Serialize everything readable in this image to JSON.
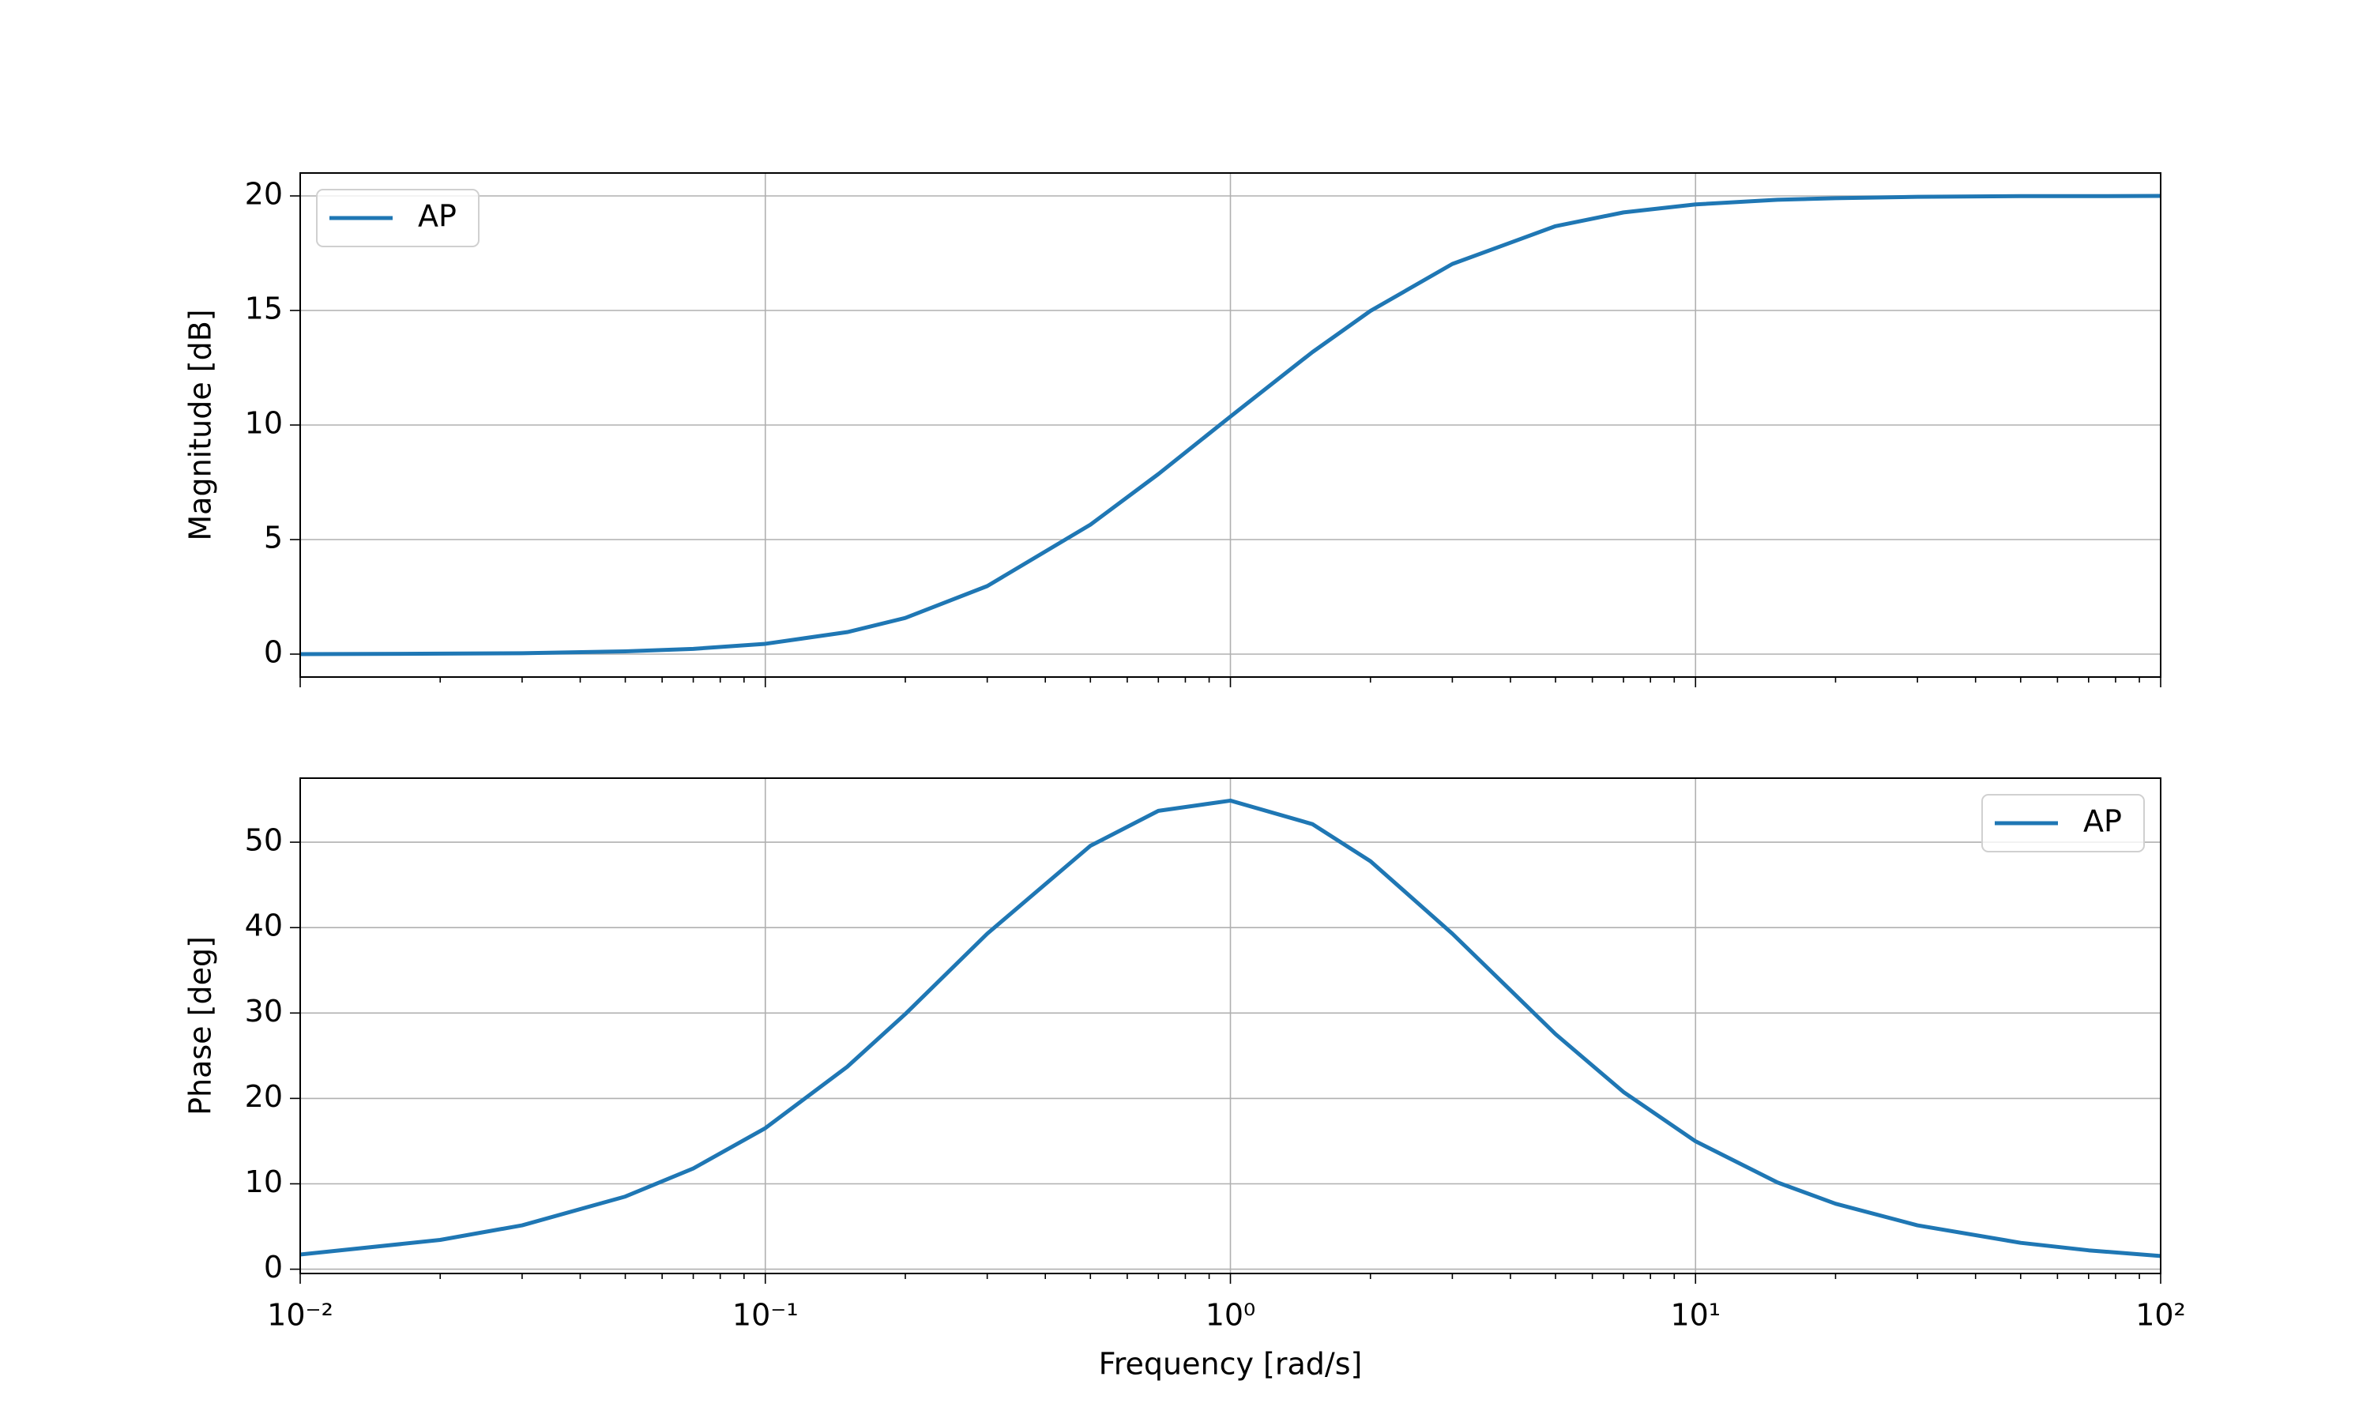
{
  "chart_data": [
    {
      "type": "line",
      "ylabel": "Magnitude [dB]",
      "xscale": "log",
      "grid": true,
      "legend": "upper left",
      "show_xtick_labels": false,
      "x": [
        0.01,
        0.02,
        0.03,
        0.05,
        0.07,
        0.1,
        0.15,
        0.2,
        0.3,
        0.5,
        0.7,
        1,
        1.5,
        2,
        3,
        5,
        7,
        10,
        15,
        20,
        30,
        50,
        70,
        100
      ],
      "series": [
        {
          "name": "AP",
          "color": "#1f77b4",
          "values": [
            0.0,
            0.02,
            0.04,
            0.12,
            0.23,
            0.45,
            0.96,
            1.58,
            2.97,
            5.65,
            7.86,
            10.37,
            13.18,
            14.98,
            17.03,
            18.68,
            19.28,
            19.63,
            19.83,
            19.9,
            19.96,
            19.99,
            19.99,
            20.0
          ]
        }
      ],
      "xlim": [
        0.01,
        100
      ],
      "xticks": [
        0.01,
        0.1,
        1,
        10,
        100
      ],
      "ylim": [
        -1,
        21
      ],
      "yticks": [
        0,
        5,
        10,
        15,
        20
      ]
    },
    {
      "type": "line",
      "ylabel": "Phase [deg]",
      "xlabel": "Frequency [rad/s]",
      "xscale": "log",
      "grid": true,
      "legend": "upper right",
      "show_xtick_labels": true,
      "x": [
        0.01,
        0.02,
        0.03,
        0.05,
        0.07,
        0.1,
        0.15,
        0.2,
        0.3,
        0.5,
        0.7,
        1,
        1.5,
        2,
        3,
        5,
        7,
        10,
        15,
        20,
        30,
        50,
        70,
        100
      ],
      "series": [
        {
          "name": "AP",
          "color": "#1f77b4",
          "values": [
            1.72,
            3.43,
            5.14,
            8.51,
            11.8,
            16.52,
            23.7,
            29.88,
            39.29,
            49.58,
            53.67,
            54.87,
            52.12,
            47.78,
            39.29,
            27.53,
            20.75,
            14.98,
            10.16,
            7.67,
            5.14,
            3.09,
            2.21,
            1.55
          ]
        }
      ],
      "xlim": [
        0.01,
        100
      ],
      "xticks": [
        {
          "value": 0.01,
          "label": "10⁻²"
        },
        {
          "value": 0.1,
          "label": "10⁻¹"
        },
        {
          "value": 1,
          "label": "10⁰"
        },
        {
          "value": 10,
          "label": "10¹"
        },
        {
          "value": 100,
          "label": "10²"
        }
      ],
      "ylim": [
        -0.5,
        57.5
      ],
      "yticks": [
        0,
        10,
        20,
        30,
        40,
        50
      ]
    }
  ]
}
